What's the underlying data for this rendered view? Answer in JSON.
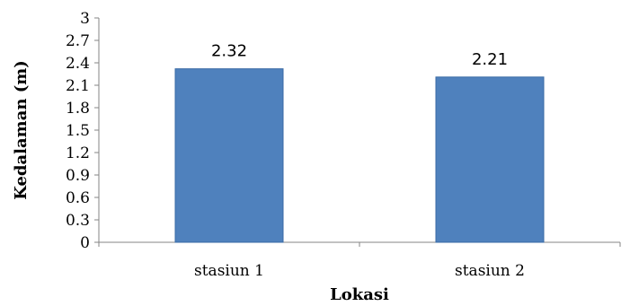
{
  "chart_data": {
    "type": "bar",
    "categories": [
      "stasiun 1",
      "stasiun 2"
    ],
    "values": [
      2.32,
      2.21
    ],
    "data_labels": [
      "2.32",
      "2.21"
    ],
    "title": "",
    "xlabel": "Lokasi",
    "ylabel": "Kedalaman (m)",
    "ylim": [
      0,
      3
    ],
    "y_ticks": [
      "0",
      "0.3",
      "0.6",
      "0.9",
      "1.2",
      "1.5",
      "1.8",
      "2.1",
      "2.4",
      "2.7",
      "3"
    ],
    "y_tick_values": [
      0,
      0.3,
      0.6,
      0.9,
      1.2,
      1.5,
      1.8,
      2.1,
      2.4,
      2.7,
      3
    ],
    "grid": false,
    "legend": "none",
    "bar_color": "#4F81BD",
    "bar_border_color": "#3A6AA5"
  }
}
